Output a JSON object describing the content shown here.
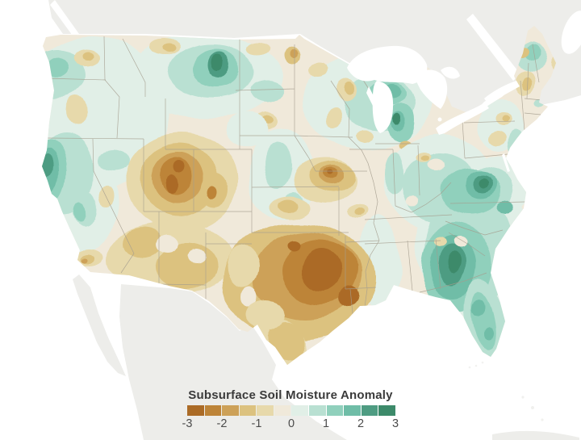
{
  "legend": {
    "title": "Subsurface Soil Moisture Anomaly",
    "ticks": [
      "-3",
      "-2",
      "-1",
      "0",
      "1",
      "2",
      "3"
    ],
    "palette": [
      "#ab6b26",
      "#bd8438",
      "#cda158",
      "#dcc27f",
      "#e7d9ab",
      "#f0e9da",
      "#e1efe7",
      "#b9e0d2",
      "#90d0bc",
      "#6fbda7",
      "#4e9c82",
      "#3d8a6a"
    ]
  },
  "map": {
    "region": "Contiguous United States",
    "kind": "filled-contour soil moisture anomaly map",
    "neighboring_land": [
      "Canada",
      "Mexico",
      "Cuba",
      "Bahamas"
    ],
    "water_bodies": [
      "Pacific Ocean",
      "Atlantic Ocean",
      "Gulf of Mexico",
      "Great Lakes",
      "Gulf of California",
      "St. Lawrence River"
    ],
    "anomaly_regions": [
      {
        "area": "Southern Plains - eastern Oklahoma, northeast Texas, Arkansas, Louisiana",
        "anomaly": "strongly dry (-2 to -3)"
      },
      {
        "area": "Utah and western Colorado (Four Corners)",
        "anomaly": "dry (-1.5 to -2.5)"
      },
      {
        "area": "Iowa-Missouri border",
        "anomaly": "dry core (-2 to -3)"
      },
      {
        "area": "Southwest - Arizona, New Mexico, west Texas",
        "anomaly": "mildly dry (-0.5 to -1.5)"
      },
      {
        "area": "Southeast - Georgia, Alabama, Carolinas, Florida",
        "anomaly": "strongly wet (+1.5 to +3)"
      },
      {
        "area": "Mid-Atlantic - Virginia, West Virginia, Maryland",
        "anomaly": "wet (+1.5 to +2.5)"
      },
      {
        "area": "Montana and western North Dakota",
        "anomaly": "wet core (+2 to +3)"
      },
      {
        "area": "Upper Michigan and Michigan mitten",
        "anomaly": "wet (+1 to +2.5)"
      },
      {
        "area": "Pacific Northwest and northern California coast",
        "anomaly": "wet (+1 to +2.5)"
      },
      {
        "area": "Northeast - New York, Pennsylvania, New England",
        "anomaly": "near neutral, mixed small wet and dry patches"
      },
      {
        "area": "Great Basin / Nevada",
        "anomaly": "near neutral (0 to -1)"
      }
    ]
  },
  "colors": {
    "ocean": "#ffffff",
    "foreign_land": "#ededea",
    "base_land": "#f0e9da",
    "state_border": "#a59d8e",
    "legend_title_text": "#3a3a3a",
    "legend_tick_text": "#4c4c4c"
  }
}
